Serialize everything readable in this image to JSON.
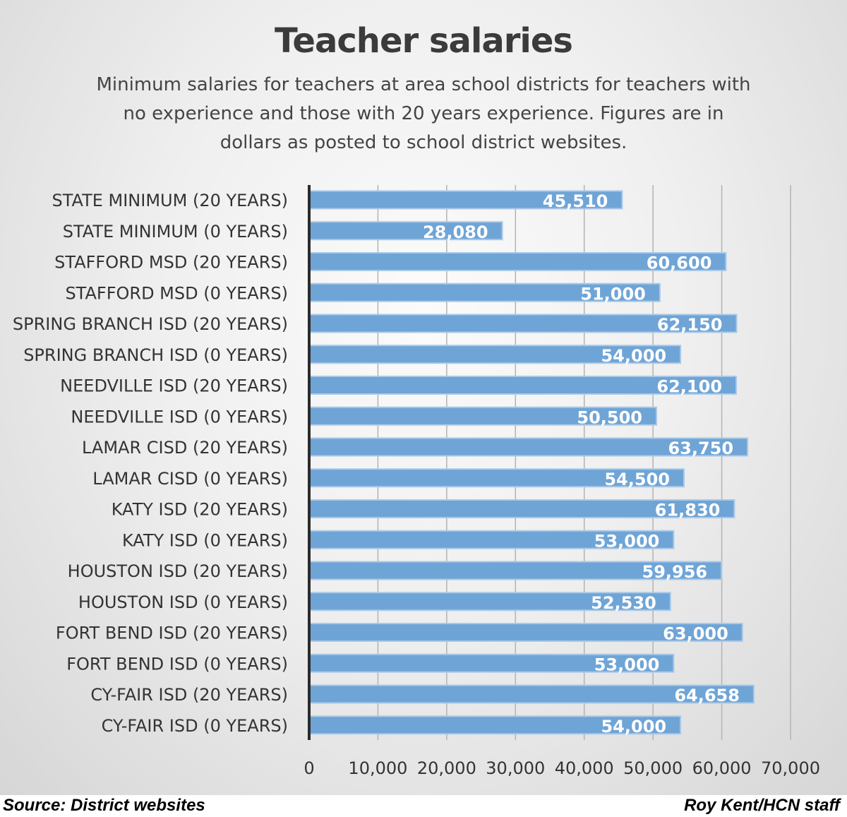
{
  "chart_data": {
    "type": "bar",
    "orientation": "horizontal",
    "title": "Teacher salaries",
    "subtitle": "Minimum salaries for teachers at area school districts for teachers with no experience and those with 20 years experience. Figures are in dollars as posted to school district websites.",
    "categories": [
      "STATE MINIMUM (20 YEARS)",
      "STATE MINIMUM (0 YEARS)",
      "STAFFORD MSD (20 YEARS)",
      "STAFFORD MSD (0 YEARS)",
      "SPRING BRANCH ISD (20 YEARS)",
      "SPRING BRANCH ISD (0 YEARS)",
      "NEEDVILLE ISD (20 YEARS)",
      "NEEDVILLE ISD (0 YEARS)",
      "LAMAR CISD (20 YEARS)",
      "LAMAR CISD (0 YEARS)",
      "KATY ISD (20 YEARS)",
      "KATY ISD (0 YEARS)",
      "HOUSTON ISD (20 YEARS)",
      "HOUSTON ISD (0 YEARS)",
      "FORT BEND ISD (20 YEARS)",
      "FORT BEND ISD (0 YEARS)",
      "CY-FAIR ISD (20 YEARS)",
      "CY-FAIR ISD (0 YEARS)"
    ],
    "values": [
      45510,
      28080,
      60600,
      51000,
      62150,
      54000,
      62100,
      50500,
      63750,
      54500,
      61830,
      53000,
      59956,
      52530,
      63000,
      53000,
      64658,
      54000
    ],
    "value_labels": [
      "45,510",
      "28,080",
      "60,600",
      "51,000",
      "62,150",
      "54,000",
      "62,100",
      "50,500",
      "63,750",
      "54,500",
      "61,830",
      "53,000",
      "59,956",
      "52,530",
      "63,000",
      "53,000",
      "64,658",
      "54,000"
    ],
    "x_ticks": [
      0,
      10000,
      20000,
      30000,
      40000,
      50000,
      60000,
      70000
    ],
    "x_tick_labels": [
      "0",
      "10,000",
      "20,000",
      "30,000",
      "40,000",
      "50,000",
      "60,000",
      "70,000"
    ],
    "xlim": [
      0,
      70000
    ],
    "xlabel": "",
    "ylabel": "",
    "grid": true,
    "colors": {
      "bar": "#6fa4d6",
      "bar_edge": "#a9c9e8",
      "label": "#ffffff",
      "axis": "#2b2b2b",
      "grid": "#b3b3b3",
      "text": "#333333"
    }
  },
  "footer": {
    "source": "Source: District websites",
    "credit": "Roy Kent/HCN staff"
  }
}
